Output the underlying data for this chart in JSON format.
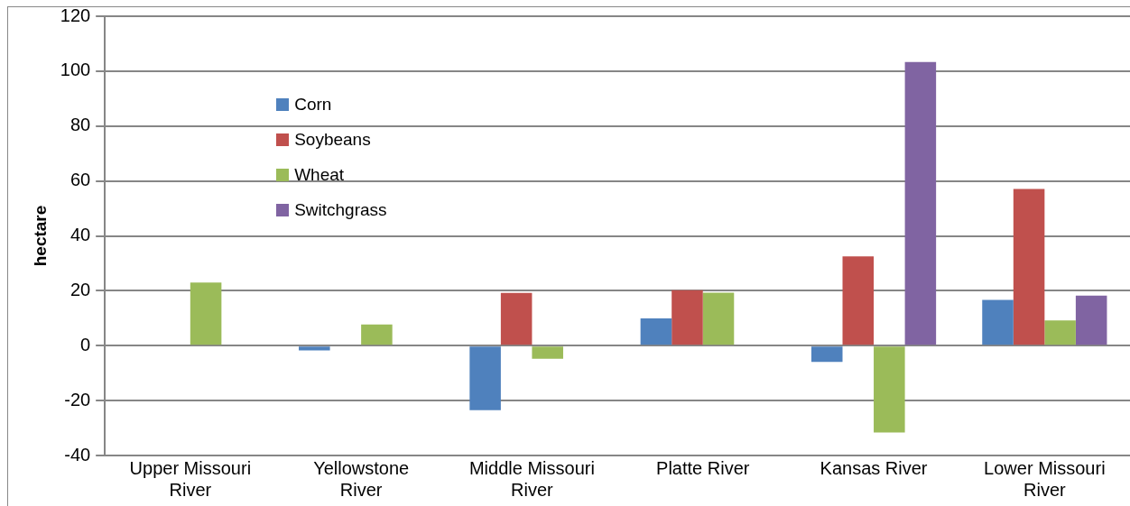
{
  "chart_data": {
    "type": "bar",
    "ylabel": "hectare",
    "categories": [
      "Upper Missouri River",
      "Yellowstone River",
      "Middle Missouri River",
      "Platte River",
      "Kansas River",
      "Lower Missouri River"
    ],
    "series": [
      {
        "name": "Corn",
        "color": "#4f81bd",
        "values": [
          null,
          -1.7,
          -23.5,
          9.9,
          -5.9,
          16.7
        ]
      },
      {
        "name": "Soybeans",
        "color": "#c0504d",
        "values": [
          null,
          null,
          19.2,
          20.2,
          32.5,
          57.1
        ]
      },
      {
        "name": "Wheat",
        "color": "#9bbb59",
        "values": [
          23,
          7.7,
          -4.8,
          19.3,
          -31.6,
          9.2
        ]
      },
      {
        "name": "Switchgrass",
        "color": "#8064a2",
        "values": [
          null,
          null,
          null,
          null,
          103.3,
          18.2
        ]
      }
    ],
    "ylim": [
      -40,
      120
    ],
    "yticks": [
      -40,
      -20,
      0,
      20,
      40,
      60,
      80,
      100,
      120
    ],
    "grid": "y",
    "legend": "top left"
  }
}
